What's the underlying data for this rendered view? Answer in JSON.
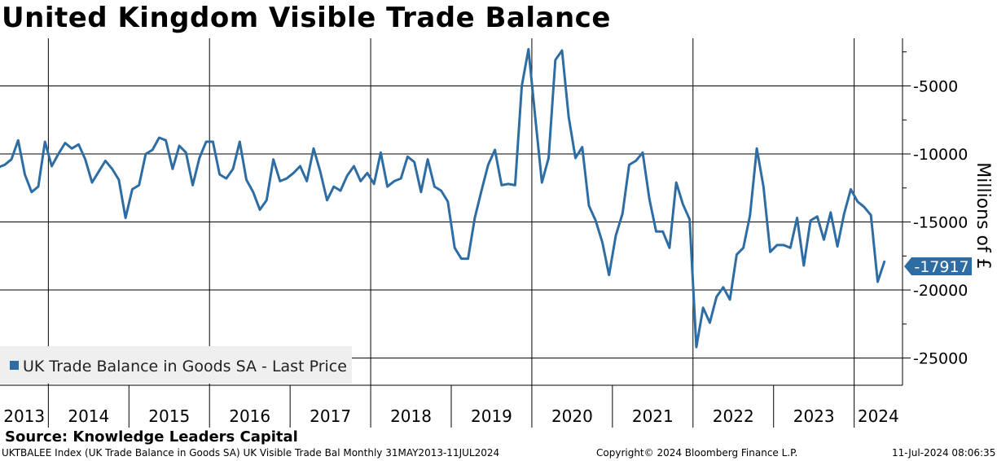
{
  "chart_data": {
    "type": "line",
    "title": "United Kingdom Visible Trade Balance",
    "ylabel": "Millions of £",
    "xlabel": "",
    "ylim": [
      -27000,
      -1500
    ],
    "yticks": [
      -5000,
      -10000,
      -15000,
      -20000,
      -25000
    ],
    "ytick_labels": [
      "-5000",
      "-10000",
      "-15000",
      "-20000",
      "-25000"
    ],
    "x_range": [
      2013.4,
      2024.6
    ],
    "year_labels": [
      "2013",
      "2014",
      "2015",
      "2016",
      "2017",
      "2018",
      "2019",
      "2020",
      "2021",
      "2022",
      "2023",
      "2024"
    ],
    "legend": "UK Trade Balance in Goods SA - Last Price",
    "legend_position": "bottom-left",
    "grid": true,
    "last_value": -17917,
    "last_value_label": "-17917",
    "line_color": "#2e6da4",
    "series": [
      {
        "name": "UK Trade Balance in Goods SA - Last Price",
        "x": [
          2013.375,
          2013.458,
          2013.542,
          2013.625,
          2013.708,
          2013.792,
          2013.875,
          2013.958,
          2014.042,
          2014.125,
          2014.208,
          2014.292,
          2014.375,
          2014.458,
          2014.542,
          2014.625,
          2014.708,
          2014.792,
          2014.875,
          2014.958,
          2015.042,
          2015.125,
          2015.208,
          2015.292,
          2015.375,
          2015.458,
          2015.542,
          2015.625,
          2015.708,
          2015.792,
          2015.875,
          2015.958,
          2016.042,
          2016.125,
          2016.208,
          2016.292,
          2016.375,
          2016.458,
          2016.542,
          2016.625,
          2016.708,
          2016.792,
          2016.875,
          2016.958,
          2017.042,
          2017.125,
          2017.208,
          2017.292,
          2017.375,
          2017.458,
          2017.542,
          2017.625,
          2017.708,
          2017.792,
          2017.875,
          2017.958,
          2018.042,
          2018.125,
          2018.208,
          2018.292,
          2018.375,
          2018.458,
          2018.542,
          2018.625,
          2018.708,
          2018.792,
          2018.875,
          2018.958,
          2019.042,
          2019.125,
          2019.208,
          2019.292,
          2019.375,
          2019.458,
          2019.542,
          2019.625,
          2019.708,
          2019.792,
          2019.875,
          2019.958,
          2020.042,
          2020.125,
          2020.208,
          2020.292,
          2020.375,
          2020.458,
          2020.542,
          2020.625,
          2020.708,
          2020.792,
          2020.875,
          2020.958,
          2021.042,
          2021.125,
          2021.208,
          2021.292,
          2021.375,
          2021.458,
          2021.542,
          2021.625,
          2021.708,
          2021.792,
          2021.875,
          2021.958,
          2022.042,
          2022.125,
          2022.208,
          2022.292,
          2022.375,
          2022.458,
          2022.542,
          2022.625,
          2022.708,
          2022.792,
          2022.875,
          2022.958,
          2023.042,
          2023.125,
          2023.208,
          2023.292,
          2023.375,
          2023.458,
          2023.542,
          2023.625,
          2023.708,
          2023.792,
          2023.875,
          2023.958,
          2024.042,
          2024.125,
          2024.208,
          2024.292,
          2024.375
        ],
        "values": [
          -11000,
          -10800,
          -10400,
          -9000,
          -11500,
          -12800,
          -12400,
          -9100,
          -10900,
          -10000,
          -9200,
          -9600,
          -9300,
          -10400,
          -12100,
          -11300,
          -10500,
          -11100,
          -11900,
          -14700,
          -12600,
          -12300,
          -10000,
          -9700,
          -8800,
          -9000,
          -11100,
          -9400,
          -9900,
          -12300,
          -10300,
          -9100,
          -9100,
          -11500,
          -11800,
          -11100,
          -9100,
          -11900,
          -12800,
          -14100,
          -13400,
          -10400,
          -12000,
          -11800,
          -11400,
          -10900,
          -12000,
          -9600,
          -11300,
          -13400,
          -12400,
          -12700,
          -11600,
          -10900,
          -12000,
          -11400,
          -12200,
          -9900,
          -12400,
          -12000,
          -11800,
          -10200,
          -10600,
          -12800,
          -10400,
          -12400,
          -12700,
          -13500,
          -16900,
          -17700,
          -17700,
          -14700,
          -12700,
          -10800,
          -9700,
          -12300,
          -12200,
          -12300,
          -5000,
          -2300,
          -7300,
          -12100,
          -10300,
          -3100,
          -2400,
          -7300,
          -10300,
          -9500,
          -13800,
          -14900,
          -16500,
          -18900,
          -16000,
          -14400,
          -10800,
          -10500,
          -9900,
          -13300,
          -15700,
          -15700,
          -16900,
          -12100,
          -13700,
          -14800,
          -24200,
          -21300,
          -22400,
          -20500,
          -19800,
          -20700,
          -17400,
          -16900,
          -14500,
          -9600,
          -12400,
          -17200,
          -16700,
          -16700,
          -16900,
          -14700,
          -18200,
          -14900,
          -14600,
          -16300,
          -14300,
          -16800,
          -14400,
          -12600,
          -13500,
          -13900,
          -14500,
          -19400,
          -17917
        ]
      }
    ]
  },
  "source_label": "Source: Knowledge Leaders Capital",
  "footer": {
    "ticker_info": "UKTBALEE Index (UK Trade Balance in Goods SA) UK Visible Trade Bal  Monthly 31MAY2013-11JUL2024",
    "copyright": "Copyright© 2024 Bloomberg Finance L.P.",
    "timestamp": "11-Jul-2024 08:06:35"
  }
}
